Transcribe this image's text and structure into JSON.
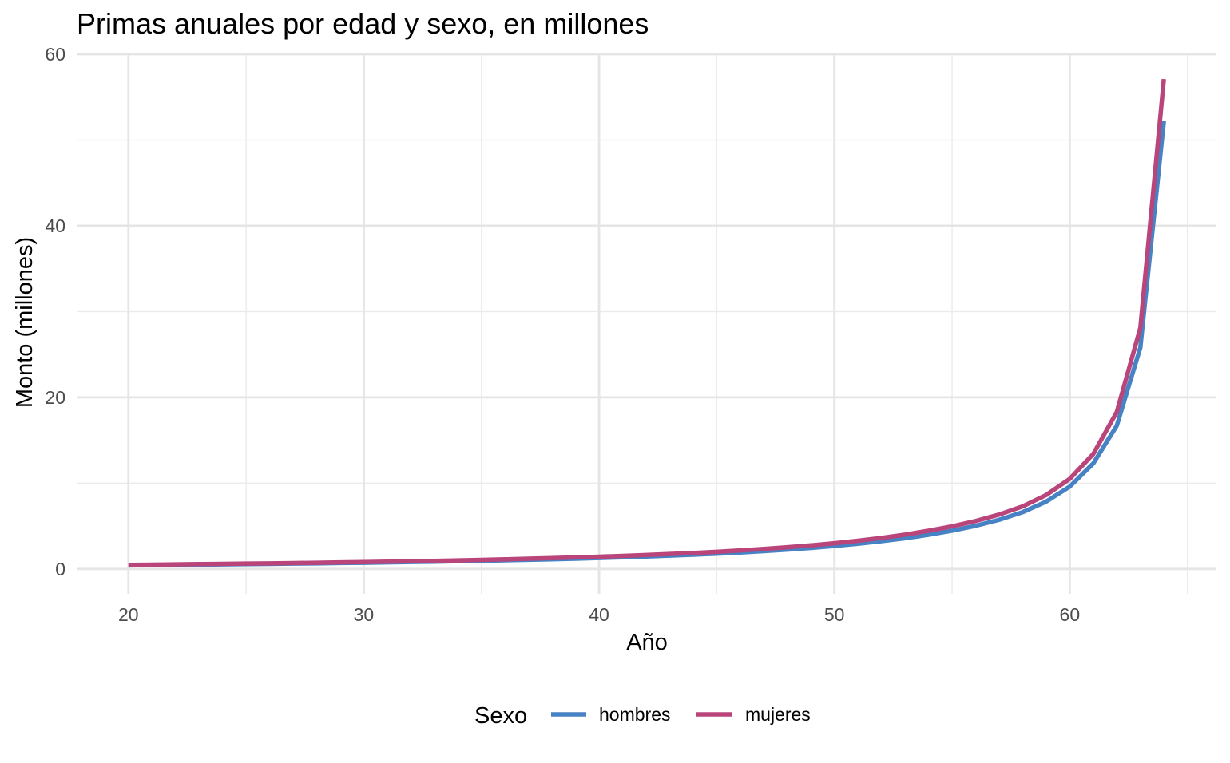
{
  "chart_data": {
    "type": "line",
    "title": "Primas anuales por edad y sexo, en millones",
    "xlabel": "Año",
    "ylabel": "Monto (millones)",
    "xlim": [
      17.8,
      66.2
    ],
    "ylim": [
      -2.9,
      60
    ],
    "x_ticks": [
      20,
      30,
      40,
      50,
      60
    ],
    "x_minor_ticks": [
      25,
      35,
      45,
      55,
      65
    ],
    "y_ticks": [
      0,
      20,
      40,
      60
    ],
    "y_minor_ticks": [
      10,
      30,
      50
    ],
    "grid": true,
    "legend": {
      "title": "Sexo",
      "position": "bottom"
    },
    "x": [
      20,
      21,
      22,
      23,
      24,
      25,
      26,
      27,
      28,
      29,
      30,
      31,
      32,
      33,
      34,
      35,
      36,
      37,
      38,
      39,
      40,
      41,
      42,
      43,
      44,
      45,
      46,
      47,
      48,
      49,
      50,
      51,
      52,
      53,
      54,
      55,
      56,
      57,
      58,
      59,
      60,
      61,
      62,
      63,
      64
    ],
    "series": [
      {
        "name": "hombres",
        "color": "#4682c4",
        "values": [
          0.42,
          0.45,
          0.47,
          0.5,
          0.53,
          0.56,
          0.59,
          0.62,
          0.65,
          0.69,
          0.72,
          0.76,
          0.81,
          0.85,
          0.9,
          0.95,
          1.01,
          1.07,
          1.13,
          1.2,
          1.27,
          1.36,
          1.45,
          1.55,
          1.66,
          1.78,
          1.92,
          2.08,
          2.25,
          2.45,
          2.68,
          2.94,
          3.24,
          3.58,
          3.98,
          4.46,
          5.03,
          5.73,
          6.62,
          7.85,
          9.6,
          12.3,
          16.7,
          25.8,
          52.2
        ]
      },
      {
        "name": "mujeres",
        "color": "#b9457a",
        "values": [
          0.47,
          0.5,
          0.53,
          0.56,
          0.59,
          0.62,
          0.65,
          0.68,
          0.72,
          0.76,
          0.8,
          0.85,
          0.89,
          0.94,
          1.0,
          1.06,
          1.12,
          1.19,
          1.26,
          1.34,
          1.43,
          1.52,
          1.63,
          1.74,
          1.86,
          2.0,
          2.16,
          2.33,
          2.53,
          2.75,
          3.0,
          3.29,
          3.62,
          4.0,
          4.45,
          4.97,
          5.59,
          6.34,
          7.29,
          8.62,
          10.5,
          13.4,
          18.3,
          28.1,
          57.1
        ]
      }
    ]
  }
}
